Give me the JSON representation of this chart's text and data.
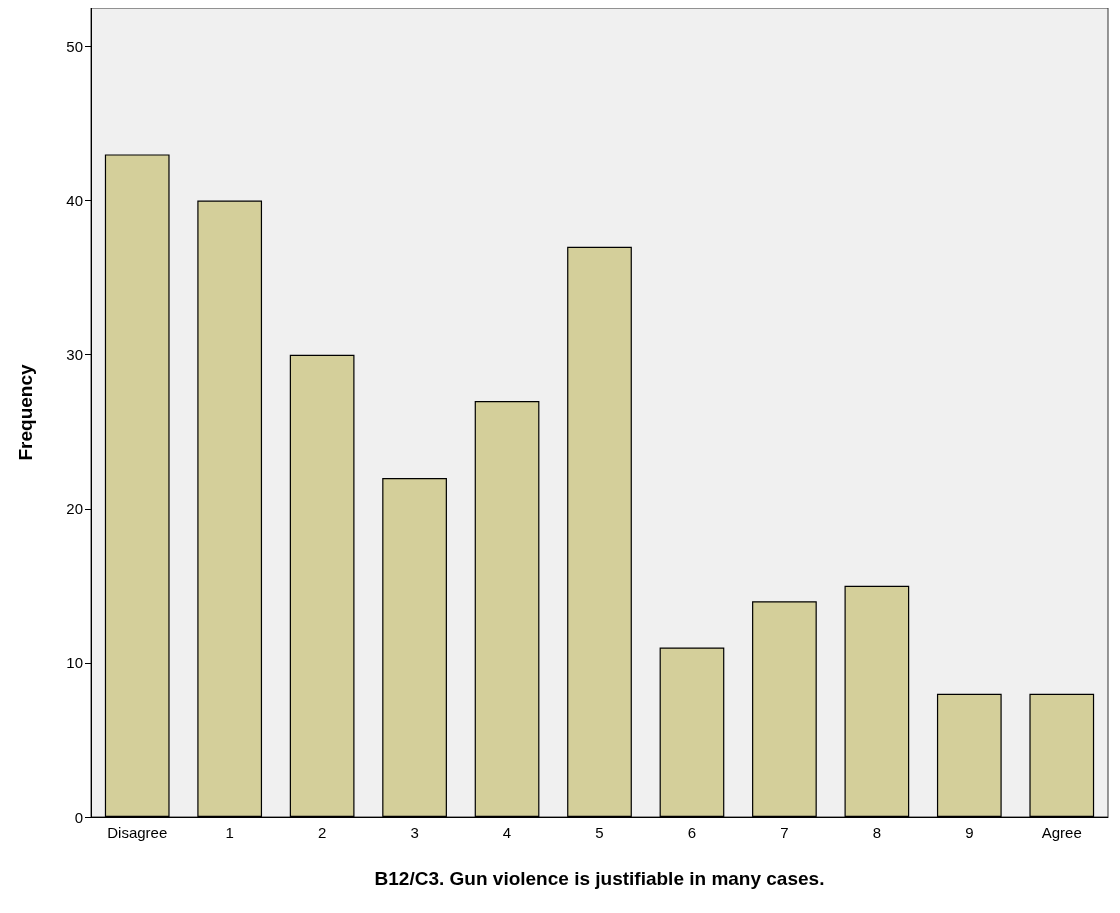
{
  "chart_data": {
    "type": "bar",
    "xlabel": "B12/C3. Gun violence is justifiable in many cases.",
    "ylabel": "Frequency",
    "categories": [
      "Disagree",
      "1",
      "2",
      "3",
      "4",
      "5",
      "6",
      "7",
      "8",
      "9",
      "Agree"
    ],
    "values": [
      43,
      40,
      30,
      22,
      27,
      37,
      11,
      14,
      15,
      8,
      8
    ],
    "color": "#d4cf9a",
    "ylim": [
      0,
      52.5
    ],
    "yticks": [
      0,
      10,
      20,
      30,
      40,
      50
    ],
    "grid": false
  }
}
